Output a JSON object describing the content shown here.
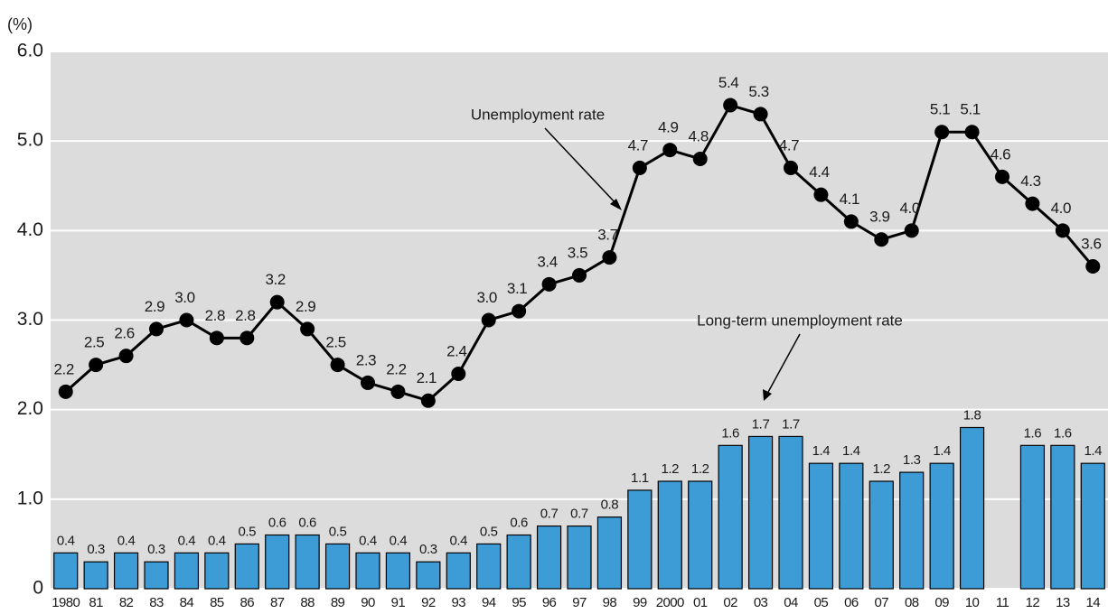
{
  "chart_data": {
    "type": "bar",
    "y_axis_label": "(%)",
    "categories": [
      "1980",
      "81",
      "82",
      "83",
      "84",
      "85",
      "86",
      "87",
      "88",
      "89",
      "90",
      "91",
      "92",
      "93",
      "94",
      "95",
      "96",
      "97",
      "98",
      "99",
      "2000",
      "01",
      "02",
      "03",
      "04",
      "05",
      "06",
      "07",
      "08",
      "09",
      "10",
      "11",
      "12",
      "13",
      "14"
    ],
    "series": [
      {
        "name": "Unemployment rate",
        "type": "line",
        "color": "#000000",
        "values": [
          2.2,
          2.5,
          2.6,
          2.9,
          3.0,
          2.8,
          2.8,
          3.2,
          2.9,
          2.5,
          2.3,
          2.2,
          2.1,
          2.4,
          3.0,
          3.1,
          3.4,
          3.5,
          3.7,
          4.7,
          4.9,
          4.8,
          5.4,
          5.3,
          4.7,
          4.4,
          4.1,
          3.9,
          4.0,
          5.1,
          5.1,
          4.6,
          4.3,
          4.0,
          3.6
        ],
        "value_labels": [
          "2.2",
          "2.5",
          "2.6",
          "2.9",
          "3.0",
          "2.8",
          "2.8",
          "3.2",
          "2.9",
          "2.5",
          "2.3",
          "2.2",
          "2.1",
          "2.4",
          "3.0",
          "3.1",
          "3.4",
          "3.5",
          "3.7",
          "4.7",
          "4.9",
          "4.8",
          "5.4",
          "5.3",
          "4.7",
          "4.4",
          "4.1",
          "3.9",
          "4.0",
          "5.1",
          "5.1",
          "4.6",
          "4.3",
          "4.0",
          "3.6"
        ]
      },
      {
        "name": "Long-term unemployment rate",
        "type": "bar",
        "color": "#3d9bd6",
        "values": [
          0.4,
          0.3,
          0.4,
          0.3,
          0.4,
          0.4,
          0.5,
          0.6,
          0.6,
          0.5,
          0.4,
          0.4,
          0.3,
          0.4,
          0.5,
          0.6,
          0.7,
          0.7,
          0.8,
          1.1,
          1.2,
          1.2,
          1.6,
          1.7,
          1.7,
          1.4,
          1.4,
          1.2,
          1.3,
          1.4,
          1.8,
          null,
          1.6,
          1.6,
          1.4
        ],
        "value_labels": [
          "0.4",
          "0.3",
          "0.4",
          "0.3",
          "0.4",
          "0.4",
          "0.5",
          "0.6",
          "0.6",
          "0.5",
          "0.4",
          "0.4",
          "0.3",
          "0.4",
          "0.5",
          "0.6",
          "0.7",
          "0.7",
          "0.8",
          "1.1",
          "1.2",
          "1.2",
          "1.6",
          "1.7",
          "1.7",
          "1.4",
          "1.4",
          "1.2",
          "1.3",
          "1.4",
          "1.8",
          null,
          "1.6",
          "1.6",
          "1.4"
        ]
      }
    ],
    "ylim": [
      0,
      6
    ],
    "yticks": [
      0,
      {
        "value": 1,
        "label": "1.0"
      },
      {
        "value": 2,
        "label": "2.0"
      },
      {
        "value": 3,
        "label": "3.0"
      },
      {
        "value": 4,
        "label": "4.0"
      },
      {
        "value": 5,
        "label": "5.0"
      },
      {
        "value": 6,
        "label": "6.0"
      }
    ],
    "grid": true
  }
}
